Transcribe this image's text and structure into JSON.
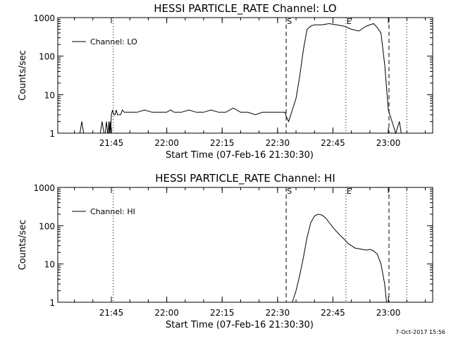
{
  "chart_data": [
    {
      "type": "line",
      "title": "HESSI PARTICLE_RATE Channel: LO",
      "xlabel": "Start Time (07-Feb-16 21:30:30)",
      "ylabel": "Counts/sec",
      "y_scale": "log",
      "ylim": [
        1,
        1000
      ],
      "xlim": [
        "21:30:30",
        "23:12:00"
      ],
      "x_tick_labels": [
        "21:45",
        "22:00",
        "22:15",
        "22:30",
        "22:45",
        "23:00"
      ],
      "y_tick_labels": [
        "1",
        "10",
        "100",
        "1000"
      ],
      "legend": {
        "placement": "top-left",
        "entries": [
          "Channel: LO"
        ]
      },
      "markers": [
        {
          "label": "",
          "x": "21:45:30",
          "style": "dotted"
        },
        {
          "label": "S",
          "x": "22:32:20",
          "style": "dashed"
        },
        {
          "label": "E",
          "x": "22:48:30",
          "style": "dotted"
        },
        {
          "label": "",
          "x": "23:00:10",
          "style": "dashed"
        },
        {
          "label": "",
          "x": "23:05:00",
          "style": "dotted"
        }
      ],
      "series": [
        {
          "name": "Channel: LO",
          "x": [
            "21:36:30",
            "21:37:00",
            "21:37:30",
            "21:42:00",
            "21:42:30",
            "21:43:00",
            "21:43:20",
            "21:43:40",
            "21:44:00",
            "21:44:10",
            "21:44:20",
            "21:44:30",
            "21:44:40",
            "21:44:50",
            "21:45:00",
            "21:45:20",
            "21:45:40",
            "21:46:00",
            "21:46:20",
            "21:46:40",
            "21:47:00",
            "21:47:30",
            "21:48:00",
            "21:48:30",
            "21:49:00",
            "21:50:00",
            "21:52:00",
            "21:54:00",
            "21:56:00",
            "21:58:00",
            "22:00:00",
            "22:01:00",
            "22:02:00",
            "22:04:00",
            "22:06:00",
            "22:08:00",
            "22:10:00",
            "22:12:00",
            "22:14:00",
            "22:16:00",
            "22:18:00",
            "22:20:00",
            "22:22:00",
            "22:24:00",
            "22:26:00",
            "22:28:00",
            "22:30:00",
            "22:31:00",
            "22:32:00",
            "22:32:30",
            "22:33:00",
            "22:34:00",
            "22:35:00",
            "22:36:00",
            "22:37:00",
            "22:38:00",
            "22:39:00",
            "22:40:00",
            "22:42:00",
            "22:44:00",
            "22:46:00",
            "22:48:00",
            "22:50:00",
            "22:52:00",
            "22:54:00",
            "22:56:00",
            "22:57:00",
            "22:58:00",
            "22:59:00",
            "23:00:00",
            "23:01:00",
            "23:02:00",
            "23:03:00",
            "23:03:30"
          ],
          "values": [
            1,
            2,
            1,
            1,
            2,
            1,
            1,
            2,
            1,
            1,
            2,
            1,
            2,
            1,
            3,
            4,
            3,
            3,
            4,
            3,
            3,
            3,
            4,
            3.5,
            3.5,
            3.5,
            3.5,
            4,
            3.5,
            3.5,
            3.5,
            4,
            3.5,
            3.5,
            4,
            3.5,
            3.5,
            4,
            3.5,
            3.5,
            4.5,
            3.5,
            3.5,
            3,
            3.5,
            3.5,
            3.5,
            3.5,
            3.5,
            2.5,
            2,
            4,
            8,
            30,
            150,
            500,
            600,
            650,
            650,
            700,
            650,
            600,
            500,
            450,
            600,
            700,
            550,
            400,
            60,
            4,
            2,
            1,
            2,
            1
          ]
        }
      ]
    },
    {
      "type": "line",
      "title": "HESSI PARTICLE_RATE Channel: HI",
      "xlabel": "Start Time (07-Feb-16 21:30:30)",
      "ylabel": "Counts/sec",
      "y_scale": "log",
      "ylim": [
        1,
        1000
      ],
      "xlim": [
        "21:30:30",
        "23:12:00"
      ],
      "x_tick_labels": [
        "21:45",
        "22:00",
        "22:15",
        "22:30",
        "22:45",
        "23:00"
      ],
      "y_tick_labels": [
        "1",
        "10",
        "100",
        "1000"
      ],
      "legend": {
        "placement": "top-left",
        "entries": [
          "Channel: HI"
        ]
      },
      "markers": [
        {
          "label": "",
          "x": "21:45:30",
          "style": "dotted"
        },
        {
          "label": "S",
          "x": "22:32:20",
          "style": "dashed"
        },
        {
          "label": "E",
          "x": "22:48:30",
          "style": "dotted"
        },
        {
          "label": "",
          "x": "23:00:10",
          "style": "dashed"
        },
        {
          "label": "",
          "x": "23:05:00",
          "style": "dotted"
        }
      ],
      "series": [
        {
          "name": "Channel: HI",
          "x": [
            "22:34:00",
            "22:35:00",
            "22:36:00",
            "22:37:00",
            "22:38:00",
            "22:39:00",
            "22:40:00",
            "22:41:00",
            "22:42:00",
            "22:43:00",
            "22:44:00",
            "22:45:00",
            "22:46:00",
            "22:47:00",
            "22:48:00",
            "22:49:00",
            "22:50:00",
            "22:51:00",
            "22:52:00",
            "22:53:00",
            "22:54:00",
            "22:55:00",
            "22:56:00",
            "22:57:00",
            "22:58:00",
            "22:59:00",
            "22:59:30"
          ],
          "values": [
            1,
            2,
            5,
            15,
            50,
            120,
            180,
            200,
            190,
            160,
            120,
            90,
            70,
            55,
            45,
            35,
            30,
            26,
            25,
            24,
            23,
            24,
            22,
            18,
            10,
            3,
            1
          ]
        }
      ]
    }
  ],
  "footer": {
    "stamp": "7-Oct-2017 15:56"
  }
}
